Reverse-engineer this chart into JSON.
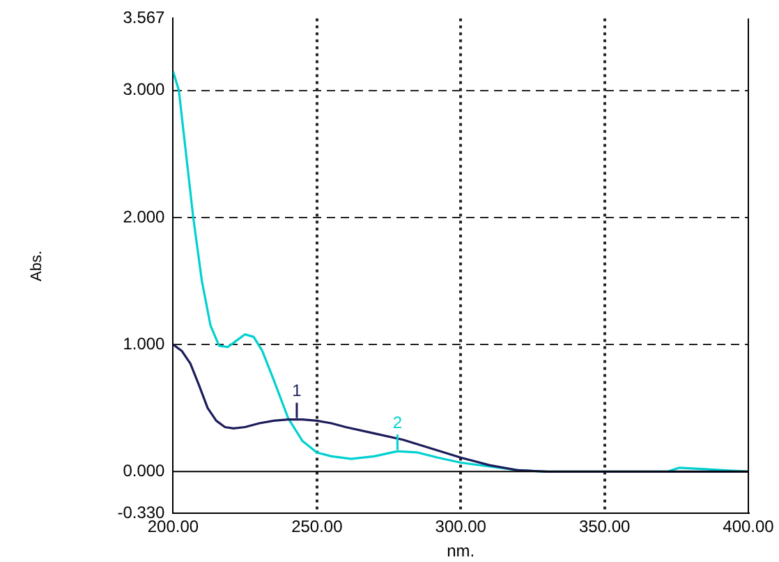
{
  "chart_data": {
    "type": "line",
    "xlabel": "nm.",
    "ylabel": "Abs.",
    "xlim": [
      200,
      400
    ],
    "xticks": [
      {
        "value": 200,
        "label": "200.00"
      },
      {
        "value": 250,
        "label": "250.00"
      },
      {
        "value": 300,
        "label": "300.00"
      },
      {
        "value": 350,
        "label": "350.00"
      },
      {
        "value": 400,
        "label": "400.00"
      }
    ],
    "ylim": [
      -0.33,
      3.567
    ],
    "yticks": [
      {
        "value": -0.33,
        "label": "-0.330"
      },
      {
        "value": 0,
        "label": "0.000"
      },
      {
        "value": 1,
        "label": "1.000"
      },
      {
        "value": 2,
        "label": "2.000"
      },
      {
        "value": 3,
        "label": "3.000"
      },
      {
        "value": 3.567,
        "label": "3.567"
      }
    ],
    "grid": true,
    "legend": false,
    "marker": "none",
    "line_style": "solid",
    "ref_lines": [
      {
        "axis": "y",
        "value": 0,
        "label": null,
        "color": "#000000",
        "line_style": "solid"
      }
    ],
    "annotations": [
      {
        "text": "1",
        "x": 243,
        "y": 0.41
      },
      {
        "text": "2",
        "x": 278,
        "y": 0.16
      }
    ],
    "series": [
      {
        "color": "#1c1c5a",
        "x": [
          200,
          203,
          206,
          209,
          212,
          215,
          218,
          221,
          225,
          230,
          235,
          240,
          245,
          250,
          255,
          260,
          270,
          280,
          290,
          300,
          310,
          320,
          330,
          350,
          370,
          400
        ],
        "values": [
          1.0,
          0.95,
          0.85,
          0.68,
          0.5,
          0.4,
          0.35,
          0.34,
          0.35,
          0.38,
          0.4,
          0.41,
          0.41,
          0.4,
          0.38,
          0.35,
          0.3,
          0.25,
          0.18,
          0.11,
          0.05,
          0.01,
          0.0,
          0.0,
          0.0,
          0.0
        ]
      },
      {
        "color": "#00d0d0",
        "x": [
          200,
          202,
          204,
          207,
          210,
          213,
          216,
          219,
          222,
          225,
          228,
          231,
          235,
          240,
          245,
          250,
          255,
          262,
          270,
          278,
          285,
          292,
          300,
          310,
          320,
          330,
          350,
          372,
          376,
          400
        ],
        "values": [
          3.15,
          3.0,
          2.6,
          2.0,
          1.5,
          1.15,
          0.99,
          0.98,
          1.03,
          1.08,
          1.06,
          0.95,
          0.72,
          0.42,
          0.24,
          0.15,
          0.12,
          0.1,
          0.12,
          0.16,
          0.15,
          0.11,
          0.07,
          0.04,
          0.01,
          0.0,
          0.0,
          0.0,
          0.03,
          0.0
        ]
      }
    ]
  }
}
